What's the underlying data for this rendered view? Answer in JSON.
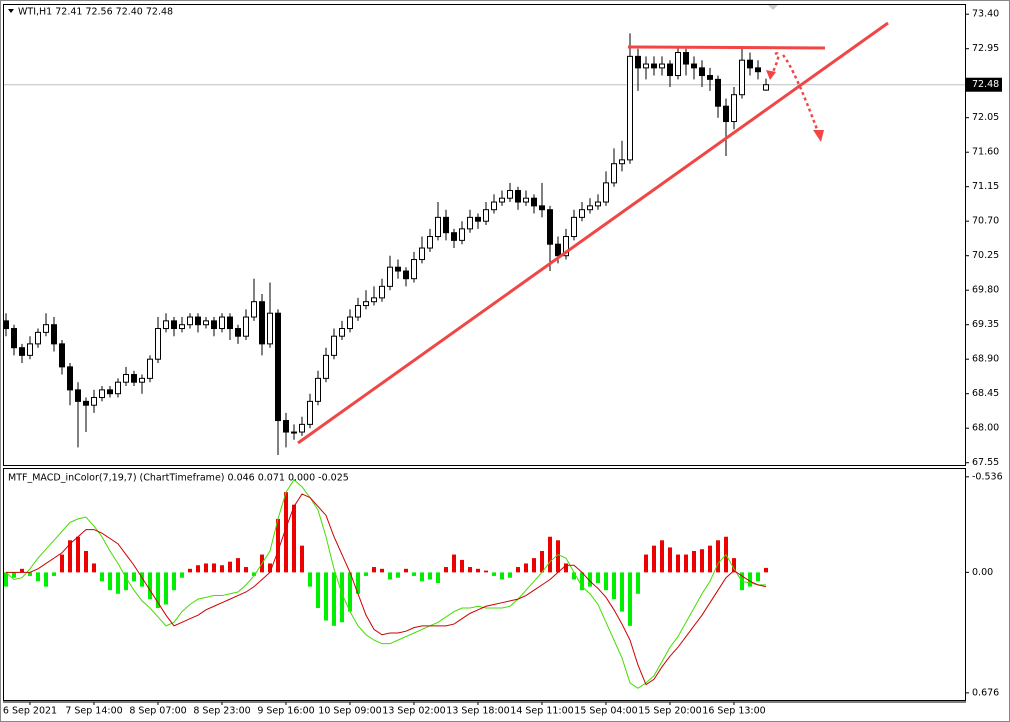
{
  "chart_data": [
    {
      "type": "candlestick",
      "title": "WTI,H1  72.41 72.56 72.40 72.48",
      "categories": [
        null,
        null,
        null,
        "6 Sep 2021",
        null,
        null,
        null,
        null,
        null,
        null,
        null,
        "7 Sep 14:00",
        null,
        null,
        null,
        null,
        null,
        null,
        null,
        "8 Sep 07:00",
        null,
        null,
        null,
        null,
        null,
        null,
        null,
        "8 Sep 23:00",
        null,
        null,
        null,
        null,
        null,
        null,
        null,
        "9 Sep 16:00",
        null,
        null,
        null,
        null,
        null,
        null,
        null,
        "10 Sep 09:00",
        null,
        null,
        null,
        null,
        null,
        null,
        null,
        "13 Sep 02:00",
        null,
        null,
        null,
        null,
        null,
        null,
        null,
        "13 Sep 18:00",
        null,
        null,
        null,
        null,
        null,
        null,
        null,
        "14 Sep 11:00",
        null,
        null,
        null,
        null,
        null,
        null,
        null,
        "15 Sep 04:00",
        null,
        null,
        null,
        null,
        null,
        null,
        null,
        "15 Sep 20:00",
        null,
        null,
        null,
        null,
        null,
        null,
        null,
        "16 Sep 13:00",
        null,
        null,
        null,
        null
      ],
      "open": [
        69.4,
        69.3,
        69.05,
        68.95,
        69.1,
        69.25,
        69.35,
        69.1,
        68.8,
        68.5,
        68.35,
        68.3,
        68.4,
        68.5,
        68.45,
        68.6,
        68.7,
        68.6,
        68.65,
        68.9,
        69.3,
        69.4,
        69.3,
        69.35,
        69.45,
        69.35,
        69.4,
        69.3,
        69.45,
        69.3,
        69.2,
        69.45,
        69.65,
        69.1,
        69.5,
        68.1,
        67.95,
        67.95,
        68.05,
        68.35,
        68.65,
        68.95,
        69.2,
        69.3,
        69.45,
        69.6,
        69.65,
        69.7,
        69.85,
        70.1,
        70.05,
        69.95,
        70.2,
        70.35,
        70.5,
        70.75,
        70.55,
        70.45,
        70.6,
        70.75,
        70.7,
        70.85,
        70.95,
        71.0,
        71.1,
        70.95,
        71.0,
        70.9,
        70.85,
        70.4,
        70.25,
        70.5,
        70.75,
        70.85,
        70.9,
        70.95,
        71.2,
        71.45,
        71.5,
        72.85,
        72.7,
        72.75,
        72.7,
        72.75,
        72.6,
        72.9,
        72.75,
        72.7,
        72.6,
        72.55,
        72.2,
        72.0,
        72.35,
        72.8,
        72.7,
        72.41
      ],
      "high": [
        69.5,
        69.35,
        69.1,
        69.2,
        69.3,
        69.5,
        69.45,
        69.15,
        68.85,
        68.6,
        68.4,
        68.5,
        68.55,
        68.55,
        68.65,
        68.8,
        68.75,
        68.7,
        68.95,
        69.45,
        69.5,
        69.45,
        69.45,
        69.5,
        69.5,
        69.45,
        69.45,
        69.5,
        69.5,
        69.35,
        69.55,
        69.95,
        69.75,
        69.9,
        69.55,
        68.2,
        68.05,
        68.15,
        68.45,
        68.75,
        69.05,
        69.3,
        69.4,
        69.55,
        69.7,
        69.8,
        69.85,
        69.95,
        70.25,
        70.2,
        70.1,
        70.3,
        70.5,
        70.6,
        70.95,
        70.85,
        70.6,
        70.7,
        70.85,
        70.8,
        70.95,
        71.05,
        71.1,
        71.2,
        71.15,
        71.1,
        71.05,
        71.2,
        70.9,
        70.5,
        70.6,
        70.85,
        70.95,
        71.0,
        71.05,
        71.35,
        71.65,
        71.75,
        73.15,
        72.95,
        72.85,
        72.85,
        72.85,
        72.8,
        72.98,
        72.95,
        72.85,
        72.8,
        72.7,
        72.6,
        72.3,
        72.45,
        72.95,
        72.9,
        72.8,
        72.56
      ],
      "low": [
        69.2,
        68.95,
        68.85,
        68.9,
        69.05,
        69.2,
        69.0,
        68.7,
        68.3,
        67.75,
        67.95,
        68.2,
        68.35,
        68.4,
        68.4,
        68.55,
        68.55,
        68.45,
        68.6,
        68.85,
        69.25,
        69.2,
        69.25,
        69.3,
        69.25,
        69.3,
        69.2,
        69.25,
        69.15,
        69.1,
        69.15,
        69.4,
        68.95,
        69.05,
        67.65,
        67.75,
        67.85,
        67.9,
        68.0,
        68.3,
        68.6,
        68.9,
        69.15,
        69.25,
        69.4,
        69.55,
        69.6,
        69.65,
        69.8,
        69.95,
        69.85,
        69.9,
        70.15,
        70.3,
        70.45,
        70.45,
        70.35,
        70.4,
        70.55,
        70.6,
        70.65,
        70.8,
        70.9,
        70.95,
        70.85,
        70.9,
        70.8,
        70.75,
        70.05,
        70.15,
        70.2,
        70.45,
        70.7,
        70.8,
        70.85,
        70.9,
        71.15,
        71.35,
        71.45,
        72.4,
        72.55,
        72.6,
        72.6,
        72.45,
        72.55,
        72.6,
        72.55,
        72.45,
        72.4,
        72.05,
        71.55,
        71.9,
        72.3,
        72.6,
        72.55,
        72.4
      ],
      "close": [
        69.3,
        69.05,
        68.95,
        69.1,
        69.25,
        69.35,
        69.1,
        68.8,
        68.5,
        68.35,
        68.3,
        68.4,
        68.5,
        68.45,
        68.6,
        68.7,
        68.6,
        68.65,
        68.9,
        69.3,
        69.4,
        69.3,
        69.35,
        69.45,
        69.35,
        69.4,
        69.3,
        69.45,
        69.3,
        69.2,
        69.45,
        69.65,
        69.1,
        69.5,
        68.1,
        67.95,
        67.95,
        68.05,
        68.35,
        68.65,
        68.95,
        69.2,
        69.3,
        69.45,
        69.6,
        69.65,
        69.7,
        69.85,
        70.1,
        70.05,
        69.95,
        70.2,
        70.35,
        70.5,
        70.75,
        70.55,
        70.45,
        70.6,
        70.75,
        70.7,
        70.85,
        70.95,
        71.0,
        71.1,
        70.95,
        71.0,
        70.9,
        70.85,
        70.4,
        70.25,
        70.5,
        70.75,
        70.85,
        70.9,
        70.95,
        71.2,
        71.45,
        71.5,
        72.85,
        72.7,
        72.75,
        72.7,
        72.75,
        72.6,
        72.9,
        72.75,
        72.7,
        72.6,
        72.55,
        72.2,
        72.0,
        72.35,
        72.8,
        72.7,
        72.65,
        72.48
      ],
      "up_color": "#ffffff",
      "down_color": "#000000",
      "wick_color": "#000000",
      "current_price": 72.48,
      "ylim": [
        67.52,
        73.52
      ],
      "yticks": [
        {
          "value": 73.4,
          "label": "73.40"
        },
        72.95,
        72.05,
        {
          "value": 71.6,
          "label": "71.60"
        },
        71.15,
        {
          "value": 70.7,
          "label": "70.70"
        },
        70.25,
        {
          "value": 69.8,
          "label": "69.80"
        },
        69.35,
        {
          "value": 68.9,
          "label": "68.90"
        },
        68.45,
        {
          "value": 68,
          "label": "68.00"
        },
        67.55
      ]
    },
    {
      "type": "macd",
      "title": "MTF_MACD_inColor(7,19,7) (ChartTimeframe) 0.046 0.071 0.000 -0.025",
      "histogram": {
        "up_color": "#00ee00",
        "down_color": "#ee0000",
        "values": [
          0.08,
          0.03,
          -0.02,
          0.02,
          0.05,
          0.08,
          0.02,
          -0.1,
          -0.18,
          -0.2,
          -0.12,
          -0.05,
          0.05,
          0.1,
          0.12,
          0.1,
          0.05,
          0.08,
          0.15,
          0.2,
          0.18,
          0.1,
          0.03,
          -0.02,
          -0.04,
          -0.05,
          -0.05,
          -0.04,
          -0.06,
          -0.08,
          -0.03,
          0.02,
          -0.1,
          -0.05,
          -0.3,
          -0.45,
          -0.38,
          -0.15,
          0.08,
          0.2,
          0.27,
          0.3,
          0.28,
          0.22,
          0.12,
          0.02,
          -0.03,
          -0.02,
          0.04,
          0.03,
          -0.02,
          0.02,
          0.05,
          0.04,
          0.06,
          -0.03,
          -0.1,
          -0.07,
          -0.03,
          -0.02,
          -0.01,
          0.02,
          0.04,
          0.03,
          -0.03,
          -0.05,
          -0.08,
          -0.12,
          -0.2,
          -0.18,
          -0.05,
          0.04,
          0.1,
          0.08,
          0.06,
          0.1,
          0.15,
          0.22,
          0.3,
          0.12,
          -0.1,
          -0.15,
          -0.18,
          -0.14,
          -0.1,
          -0.1,
          -0.12,
          -0.13,
          -0.15,
          -0.18,
          -0.2,
          -0.08,
          0.1,
          0.08,
          0.05,
          -0.025
        ]
      },
      "lines": [
        {
          "color": "#44dd00",
          "values": [
            0.0,
            0.04,
            0.03,
            -0.02,
            -0.08,
            -0.13,
            -0.18,
            -0.23,
            -0.28,
            -0.3,
            -0.31,
            -0.26,
            -0.2,
            -0.12,
            -0.05,
            0.03,
            0.1,
            0.16,
            0.2,
            0.25,
            0.3,
            0.28,
            0.22,
            0.18,
            0.15,
            0.14,
            0.13,
            0.13,
            0.12,
            0.11,
            0.07,
            0.02,
            -0.05,
            -0.12,
            -0.3,
            -0.45,
            -0.52,
            -0.48,
            -0.42,
            -0.35,
            -0.2,
            -0.02,
            0.12,
            0.22,
            0.3,
            0.35,
            0.38,
            0.4,
            0.4,
            0.38,
            0.36,
            0.34,
            0.32,
            0.3,
            0.28,
            0.25,
            0.22,
            0.2,
            0.2,
            0.19,
            0.2,
            0.2,
            0.2,
            0.19,
            0.15,
            0.1,
            0.05,
            0.0,
            -0.06,
            -0.1,
            -0.08,
            0.0,
            0.08,
            0.12,
            0.18,
            0.28,
            0.38,
            0.48,
            0.62,
            0.65,
            0.62,
            0.58,
            0.5,
            0.42,
            0.36,
            0.28,
            0.2,
            0.12,
            0.05,
            -0.05,
            -0.1,
            -0.02,
            0.05,
            0.06,
            0.07,
            0.07
          ]
        },
        {
          "color": "#cc0000",
          "values": [
            0.0,
            0.0,
            0.0,
            0.0,
            -0.02,
            -0.05,
            -0.08,
            -0.11,
            -0.16,
            -0.2,
            -0.24,
            -0.24,
            -0.22,
            -0.19,
            -0.16,
            -0.1,
            -0.04,
            0.03,
            0.1,
            0.17,
            0.24,
            0.3,
            0.28,
            0.26,
            0.24,
            0.21,
            0.19,
            0.17,
            0.15,
            0.13,
            0.11,
            0.08,
            0.04,
            0.0,
            -0.12,
            -0.25,
            -0.37,
            -0.44,
            -0.42,
            -0.37,
            -0.32,
            -0.2,
            -0.1,
            0.0,
            0.12,
            0.24,
            0.32,
            0.35,
            0.34,
            0.34,
            0.33,
            0.31,
            0.3,
            0.3,
            0.3,
            0.3,
            0.29,
            0.26,
            0.23,
            0.21,
            0.19,
            0.18,
            0.17,
            0.16,
            0.15,
            0.13,
            0.1,
            0.07,
            0.04,
            0.0,
            -0.04,
            -0.04,
            0.0,
            0.05,
            0.09,
            0.14,
            0.21,
            0.29,
            0.38,
            0.52,
            0.63,
            0.6,
            0.53,
            0.47,
            0.42,
            0.36,
            0.3,
            0.24,
            0.17,
            0.1,
            0.03,
            -0.01,
            0.02,
            0.05,
            0.07,
            0.08
          ]
        }
      ],
      "ylim": [
        0.716,
        -0.58
      ],
      "yticks": [
        0.676,
        {
          "value": 0,
          "label": "0.00"
        },
        -0.536
      ]
    }
  ]
}
